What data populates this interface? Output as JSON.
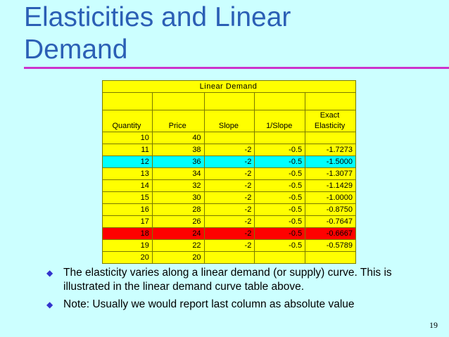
{
  "slide": {
    "title": "Elasticities and Linear\nDemand",
    "page_number": "19"
  },
  "table": {
    "caption": "Linear Demand",
    "headers": [
      "Quantity",
      "Price",
      "Slope",
      "1/Slope",
      "Exact\nElasticity"
    ],
    "rows": [
      [
        "10",
        "40",
        "",
        "",
        ""
      ],
      [
        "11",
        "38",
        "-2",
        "-0.5",
        "-1.7273"
      ],
      [
        "12",
        "36",
        "-2",
        "-0.5",
        "-1.5000"
      ],
      [
        "13",
        "34",
        "-2",
        "-0.5",
        "-1.3077"
      ],
      [
        "14",
        "32",
        "-2",
        "-0.5",
        "-1.1429"
      ],
      [
        "15",
        "30",
        "-2",
        "-0.5",
        "-1.0000"
      ],
      [
        "16",
        "28",
        "-2",
        "-0.5",
        "-0.8750"
      ],
      [
        "17",
        "26",
        "-2",
        "-0.5",
        "-0.7647"
      ],
      [
        "18",
        "24",
        "-2",
        "-0.5",
        "-0.6667"
      ],
      [
        "19",
        "22",
        "-2",
        "-0.5",
        "-0.5789"
      ],
      [
        "20",
        "20",
        "",
        "",
        ""
      ]
    ],
    "highlight": {
      "cyan_row_quantity": "12",
      "red_row_quantity": "18"
    }
  },
  "bullets": [
    "The elasticity varies along a linear demand (or supply) curve.  This is illustrated in the linear demand curve table above.",
    "Note:  Usually we would report last column as absolute value"
  ],
  "colors": {
    "background": "#ccffff",
    "title": "#2b5fb5",
    "rule": "#cc33cc",
    "table_fill": "#ffff00",
    "cyan_highlight": "#00ffff",
    "red_highlight": "#ff0000",
    "bullet_marker": "#3333cc"
  },
  "icons": {
    "bullet": "diamond-bullet-icon"
  }
}
